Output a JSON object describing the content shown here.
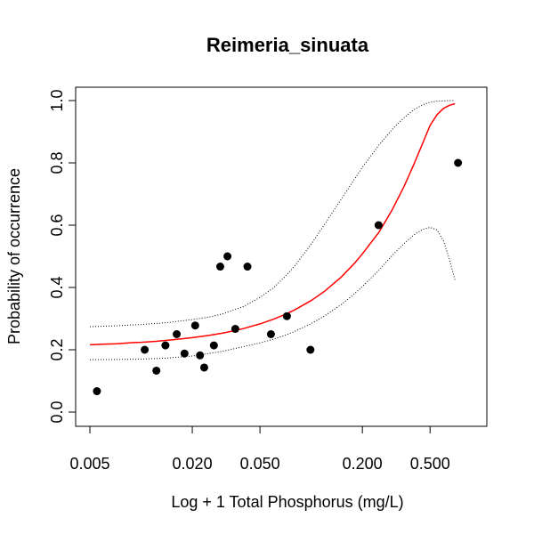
{
  "chart_data": {
    "type": "scatter",
    "title": "Reimeria_sinuata",
    "xlabel": "Log + 1 Total Phosphorus (mg/L)",
    "ylabel": "Probability of occurrence",
    "xscale": "log",
    "xlim": [
      0.005,
      0.9
    ],
    "ylim": [
      0,
      1
    ],
    "grid": false,
    "x_ticks": [
      0.005,
      0.02,
      0.05,
      0.2,
      0.5
    ],
    "x_tick_labels": [
      "0.005",
      "0.020",
      "0.050",
      "0.200",
      "0.500"
    ],
    "y_ticks": [
      0,
      0.2,
      0.4,
      0.6,
      0.8,
      1
    ],
    "y_tick_labels": [
      "0.0",
      "0.2",
      "0.4",
      "0.6",
      "0.8",
      "1.0"
    ],
    "points": [
      {
        "x": 0.0055,
        "y": 0.067
      },
      {
        "x": 0.0105,
        "y": 0.2
      },
      {
        "x": 0.0123,
        "y": 0.133
      },
      {
        "x": 0.0139,
        "y": 0.214
      },
      {
        "x": 0.0162,
        "y": 0.25
      },
      {
        "x": 0.018,
        "y": 0.188
      },
      {
        "x": 0.0208,
        "y": 0.278
      },
      {
        "x": 0.0222,
        "y": 0.182
      },
      {
        "x": 0.0235,
        "y": 0.143
      },
      {
        "x": 0.0268,
        "y": 0.214
      },
      {
        "x": 0.0292,
        "y": 0.467
      },
      {
        "x": 0.0322,
        "y": 0.5
      },
      {
        "x": 0.0358,
        "y": 0.267
      },
      {
        "x": 0.0422,
        "y": 0.467
      },
      {
        "x": 0.058,
        "y": 0.25
      },
      {
        "x": 0.072,
        "y": 0.308
      },
      {
        "x": 0.099,
        "y": 0.2
      },
      {
        "x": 0.249,
        "y": 0.6
      },
      {
        "x": 0.73,
        "y": 0.8
      }
    ],
    "fit_curve": {
      "color": "#ff0000",
      "x": [
        0.005,
        0.006,
        0.007,
        0.008,
        0.009,
        0.01,
        0.012,
        0.014,
        0.016,
        0.018,
        0.02,
        0.025,
        0.03,
        0.035,
        0.04,
        0.05,
        0.06,
        0.07,
        0.08,
        0.1,
        0.12,
        0.15,
        0.18,
        0.2,
        0.25,
        0.3,
        0.35,
        0.4,
        0.45,
        0.5,
        0.55,
        0.6,
        0.65,
        0.7
      ],
      "y": [
        0.216,
        0.218,
        0.219,
        0.221,
        0.223,
        0.224,
        0.227,
        0.23,
        0.233,
        0.236,
        0.239,
        0.246,
        0.253,
        0.261,
        0.268,
        0.283,
        0.298,
        0.313,
        0.328,
        0.358,
        0.388,
        0.433,
        0.478,
        0.508,
        0.577,
        0.65,
        0.722,
        0.793,
        0.86,
        0.92,
        0.955,
        0.975,
        0.985,
        0.99
      ]
    },
    "upper_band": {
      "style": "dotted",
      "x": [
        0.005,
        0.007,
        0.01,
        0.014,
        0.02,
        0.025,
        0.03,
        0.04,
        0.05,
        0.06,
        0.07,
        0.08,
        0.1,
        0.12,
        0.15,
        0.18,
        0.2,
        0.25,
        0.3,
        0.35,
        0.4,
        0.45,
        0.5,
        0.55,
        0.6,
        0.65,
        0.7
      ],
      "y": [
        0.274,
        0.277,
        0.281,
        0.287,
        0.297,
        0.305,
        0.315,
        0.339,
        0.368,
        0.399,
        0.434,
        0.469,
        0.539,
        0.603,
        0.683,
        0.748,
        0.786,
        0.857,
        0.908,
        0.944,
        0.97,
        0.986,
        0.995,
        0.998,
        0.999,
        1.0,
        1.0
      ]
    },
    "lower_band": {
      "style": "dotted",
      "x": [
        0.005,
        0.007,
        0.01,
        0.014,
        0.02,
        0.025,
        0.03,
        0.04,
        0.05,
        0.06,
        0.07,
        0.08,
        0.1,
        0.12,
        0.15,
        0.18,
        0.2,
        0.25,
        0.3,
        0.35,
        0.4,
        0.45,
        0.5,
        0.55,
        0.6,
        0.65,
        0.7
      ],
      "y": [
        0.168,
        0.169,
        0.17,
        0.173,
        0.18,
        0.188,
        0.195,
        0.21,
        0.222,
        0.234,
        0.246,
        0.259,
        0.284,
        0.309,
        0.345,
        0.38,
        0.403,
        0.455,
        0.503,
        0.54,
        0.568,
        0.586,
        0.593,
        0.585,
        0.55,
        0.49,
        0.425
      ]
    }
  }
}
